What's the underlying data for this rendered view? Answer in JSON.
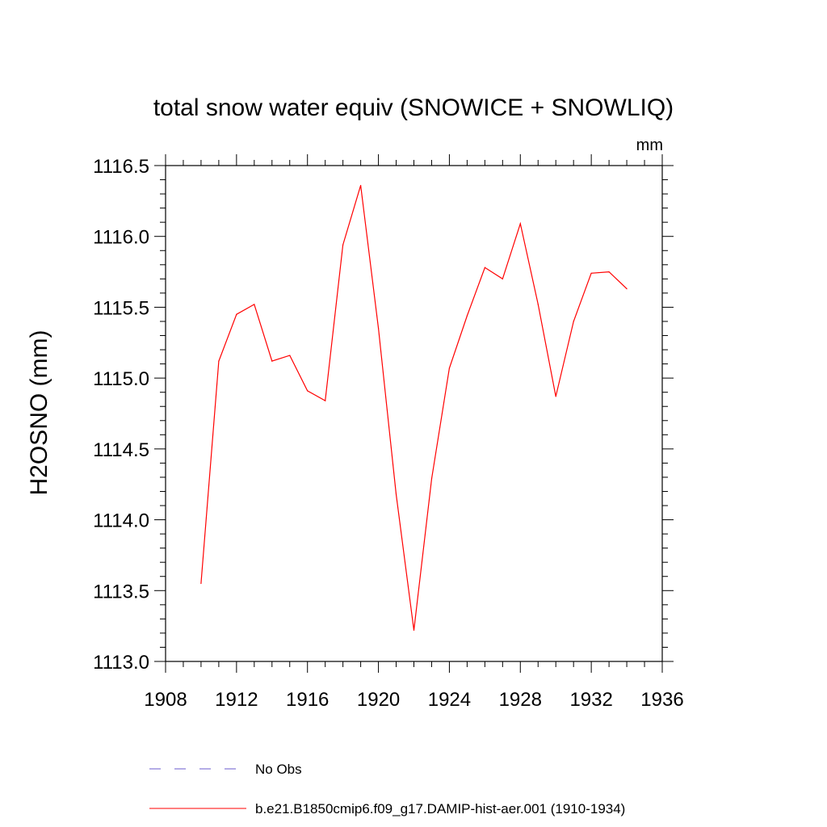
{
  "chart_data": {
    "type": "line",
    "title": "total snow water equiv (SNOWICE + SNOWLIQ)",
    "units": "mm",
    "xlabel": "",
    "ylabel": "H2OSNO  (mm)",
    "xlim": [
      1908,
      1936
    ],
    "ylim": [
      1113.0,
      1116.5
    ],
    "xticks": [
      "1908",
      "1912",
      "1916",
      "1920",
      "1924",
      "1928",
      "1932",
      "1936"
    ],
    "yticks": [
      "1113.0",
      "1113.5",
      "1114.0",
      "1114.5",
      "1115.0",
      "1115.5",
      "1116.0",
      "1116.5"
    ],
    "grid": false,
    "legend_position": "bottom",
    "series": [
      {
        "name": "No Obs",
        "color": "#6a5acd",
        "style": "dashed",
        "x": [],
        "y": []
      },
      {
        "name": "b.e21.B1850cmip6.f09_g17.DAMIP-hist-aer.001 (1910-1934)",
        "color": "#ff0000",
        "style": "solid",
        "x": [
          1910,
          1911,
          1912,
          1913,
          1914,
          1915,
          1916,
          1917,
          1918,
          1919,
          1920,
          1921,
          1922,
          1923,
          1924,
          1925,
          1926,
          1927,
          1928,
          1929,
          1930,
          1931,
          1932,
          1933,
          1934
        ],
        "y": [
          1113.55,
          1115.12,
          1115.45,
          1115.52,
          1115.12,
          1115.16,
          1114.91,
          1114.84,
          1115.94,
          1116.36,
          1115.35,
          1114.18,
          1113.22,
          1114.29,
          1115.07,
          1115.44,
          1115.78,
          1115.7,
          1116.09,
          1115.52,
          1114.87,
          1115.4,
          1115.74,
          1115.75,
          1115.63
        ]
      }
    ]
  }
}
